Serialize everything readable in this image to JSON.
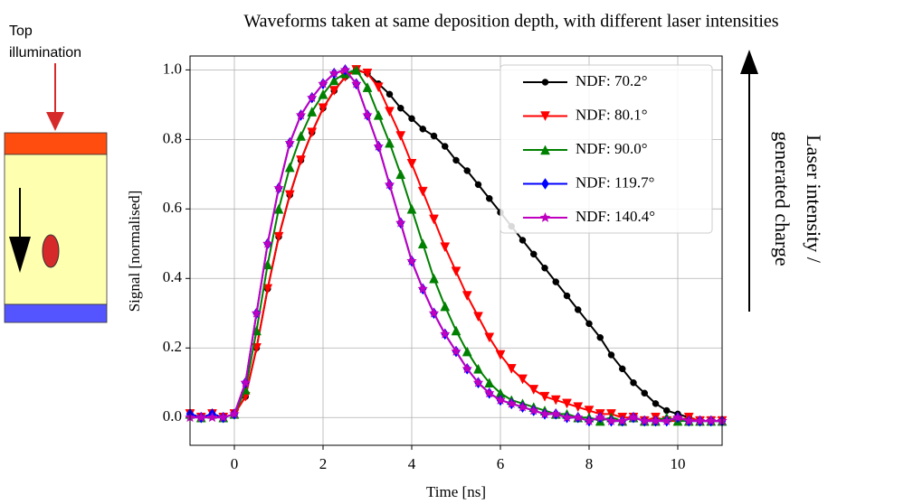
{
  "diagram": {
    "label": "Top illumination"
  },
  "annotation": {
    "lines": [
      "Laser intensity /",
      "generated charge"
    ]
  },
  "chart_data": {
    "type": "line",
    "title": "Waveforms taken at same deposition depth, with different laser intensities",
    "x_label": "Time [ns]",
    "y_label": "Signal [normalised]",
    "xlim": [
      -1,
      11
    ],
    "ylim": [
      -0.08,
      1.04
    ],
    "xticks": [
      0,
      2,
      4,
      6,
      8,
      10
    ],
    "yticks": [
      {
        "value": 0,
        "label": "0.0"
      },
      0.2,
      0.4,
      0.6,
      0.8,
      {
        "value": 1,
        "label": "1.0"
      }
    ],
    "grid": true,
    "legend": "upper right",
    "x": [
      -1,
      -0.75,
      -0.5,
      -0.25,
      0,
      0.25,
      0.5,
      0.75,
      1,
      1.25,
      1.5,
      1.75,
      2,
      2.25,
      2.5,
      2.75,
      3,
      3.25,
      3.5,
      3.75,
      4,
      4.25,
      4.5,
      4.75,
      5,
      5.25,
      5.5,
      5.75,
      6,
      6.25,
      6.5,
      6.75,
      7,
      7.25,
      7.5,
      7.75,
      8,
      8.25,
      8.5,
      8.75,
      9,
      9.25,
      9.5,
      9.75,
      10,
      10.25,
      10.5,
      10.75,
      11
    ],
    "series": [
      {
        "name": "NDF: 70.2°",
        "color": "#000000",
        "marker": "circle",
        "values": [
          0.01,
          0.0,
          0.01,
          0.0,
          0.01,
          0.06,
          0.2,
          0.37,
          0.52,
          0.64,
          0.74,
          0.82,
          0.89,
          0.94,
          0.98,
          1.0,
          0.99,
          0.96,
          0.93,
          0.89,
          0.86,
          0.83,
          0.81,
          0.78,
          0.74,
          0.71,
          0.67,
          0.63,
          0.59,
          0.55,
          0.51,
          0.47,
          0.43,
          0.39,
          0.35,
          0.31,
          0.27,
          0.23,
          0.18,
          0.14,
          0.1,
          0.07,
          0.04,
          0.02,
          0.01,
          0.0,
          -0.01,
          -0.01,
          -0.01
        ]
      },
      {
        "name": "NDF: 80.1°",
        "color": "#ff0000",
        "marker": "triangle-down",
        "values": [
          0.01,
          0.0,
          0.01,
          0.0,
          0.01,
          0.06,
          0.2,
          0.37,
          0.52,
          0.64,
          0.74,
          0.82,
          0.89,
          0.94,
          0.98,
          1.0,
          0.99,
          0.95,
          0.88,
          0.81,
          0.73,
          0.65,
          0.57,
          0.49,
          0.42,
          0.35,
          0.29,
          0.23,
          0.18,
          0.14,
          0.11,
          0.08,
          0.06,
          0.05,
          0.04,
          0.03,
          0.02,
          0.01,
          0.01,
          0.0,
          0.0,
          -0.01,
          0.0,
          -0.01,
          -0.01,
          0.0,
          -0.01,
          -0.01,
          -0.01
        ]
      },
      {
        "name": "NDF: 90.0°",
        "color": "#008000",
        "marker": "triangle-up",
        "values": [
          0.01,
          0.0,
          0.01,
          0.0,
          0.01,
          0.08,
          0.25,
          0.44,
          0.6,
          0.72,
          0.81,
          0.88,
          0.93,
          0.97,
          0.99,
          1.0,
          0.95,
          0.87,
          0.79,
          0.7,
          0.6,
          0.5,
          0.4,
          0.32,
          0.25,
          0.19,
          0.14,
          0.1,
          0.07,
          0.05,
          0.04,
          0.03,
          0.02,
          0.01,
          0.01,
          0.0,
          0.0,
          -0.01,
          0.0,
          -0.01,
          0.0,
          -0.01,
          -0.01,
          0.0,
          -0.01,
          -0.01,
          -0.01,
          -0.01,
          -0.01
        ]
      },
      {
        "name": "NDF: 119.7°",
        "color": "#0000ff",
        "marker": "diamond",
        "values": [
          0.01,
          0.0,
          0.01,
          0.0,
          0.01,
          0.1,
          0.3,
          0.5,
          0.66,
          0.79,
          0.87,
          0.92,
          0.96,
          0.99,
          1.0,
          0.96,
          0.87,
          0.78,
          0.67,
          0.56,
          0.45,
          0.37,
          0.3,
          0.24,
          0.19,
          0.14,
          0.1,
          0.07,
          0.05,
          0.04,
          0.03,
          0.02,
          0.01,
          0.01,
          0.0,
          0.0,
          -0.01,
          0.0,
          -0.01,
          -0.01,
          0.0,
          -0.01,
          -0.01,
          -0.01,
          0.0,
          -0.01,
          -0.01,
          -0.01,
          -0.01
        ]
      },
      {
        "name": "NDF: 140.4°",
        "color": "#bf00bf",
        "marker": "star",
        "values": [
          0.0,
          0.0,
          0.0,
          0.0,
          0.01,
          0.1,
          0.3,
          0.5,
          0.66,
          0.79,
          0.87,
          0.92,
          0.96,
          0.99,
          1.0,
          0.96,
          0.87,
          0.78,
          0.67,
          0.56,
          0.45,
          0.37,
          0.3,
          0.24,
          0.19,
          0.14,
          0.1,
          0.07,
          0.05,
          0.04,
          0.03,
          0.02,
          0.01,
          0.01,
          0.0,
          0.0,
          -0.01,
          0.0,
          -0.01,
          -0.01,
          0.0,
          -0.01,
          -0.01,
          -0.01,
          0.0,
          -0.01,
          -0.01,
          -0.01,
          -0.01
        ]
      }
    ]
  }
}
